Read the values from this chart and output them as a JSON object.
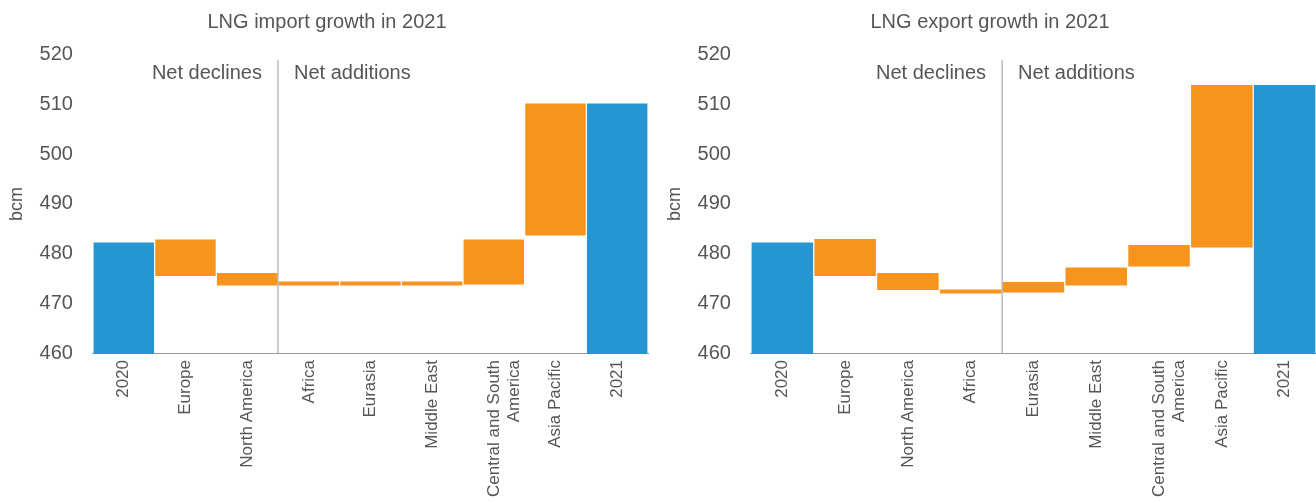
{
  "chart_data": [
    {
      "type": "bar",
      "title": "LNG import growth in 2021",
      "ylabel": "bcm",
      "categories": [
        "2020",
        "Europe",
        "North America",
        "Africa",
        "Eurasia",
        "Middle East",
        "Central and South America",
        "Asia Pacific",
        "2021"
      ],
      "values": [
        482.3,
        -7.3,
        -2.5,
        0.8,
        0.8,
        0.8,
        9.0,
        26.4,
        510.1
      ],
      "base": [
        null,
        482.9,
        476.2,
        473.7,
        473.7,
        473.7,
        473.9,
        483.7,
        null
      ],
      "colors": [
        "#2596d1",
        "#f7941d",
        "#f7941d",
        "#f7941d",
        "#f7941d",
        "#f7941d",
        "#f7941d",
        "#f7941d",
        "#2596d1"
      ],
      "ylim": [
        460,
        520
      ],
      "yticks": [
        460,
        470,
        480,
        490,
        500,
        510,
        520
      ],
      "annotations": [
        "Net declines",
        "Net additions"
      ]
    },
    {
      "type": "bar",
      "title": "LNG export growth in 2021",
      "ylabel": "bcm",
      "categories": [
        "2020",
        "Europe",
        "North America",
        "Africa",
        "Eurasia",
        "Middle East",
        "Central and South America",
        "Asia Pacific",
        "2021"
      ],
      "values": [
        482.3,
        -7.4,
        -3.4,
        -0.8,
        2.1,
        3.6,
        4.3,
        32.5,
        513.8
      ],
      "base": [
        null,
        483.0,
        476.2,
        472.9,
        472.3,
        473.7,
        477.5,
        481.3,
        null
      ],
      "colors": [
        "#2596d1",
        "#f7941d",
        "#f7941d",
        "#f7941d",
        "#f7941d",
        "#f7941d",
        "#f7941d",
        "#f7941d",
        "#2596d1"
      ],
      "ylim": [
        460,
        520
      ],
      "yticks": [
        460,
        470,
        480,
        490,
        500,
        510,
        520
      ],
      "annotations": [
        "Net declines",
        "Net additions"
      ]
    }
  ]
}
